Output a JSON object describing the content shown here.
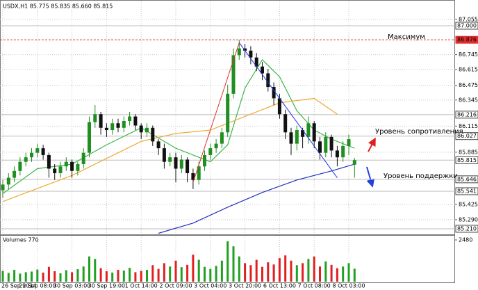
{
  "chart_data": {
    "type": "candlestick",
    "title": "USDX,H1 85.775 85.835 85.660 85.815",
    "categories": [
      "26 Sep 2014",
      null,
      null,
      null,
      null,
      null,
      "29 Sep 08:00",
      null,
      null,
      null,
      null,
      null,
      "30 Sep 03:00",
      null,
      null,
      null,
      null,
      null,
      "30 Sep 19:00",
      null,
      null,
      null,
      null,
      null,
      "1 Oct 14:00",
      null,
      null,
      null,
      null,
      null,
      "2 Oct 09:00",
      null,
      null,
      null,
      null,
      null,
      "3 Oct 04:00",
      null,
      null,
      null,
      null,
      null,
      "3 Oct 20:00",
      null,
      null,
      null,
      null,
      null,
      "6 Oct 13:00",
      null,
      null,
      null,
      null,
      null,
      "7 Oct 08:00",
      null,
      null,
      null,
      null,
      null,
      "8 Oct 03:00",
      null
    ],
    "open": [
      85.55,
      85.6,
      85.66,
      85.72,
      85.8,
      85.84,
      85.88,
      85.92,
      85.86,
      85.74,
      85.7,
      85.76,
      85.8,
      85.72,
      85.78,
      85.88,
      86.15,
      86.22,
      86.1,
      86.08,
      86.14,
      86.1,
      86.16,
      86.2,
      86.12,
      86.06,
      86.1,
      85.98,
      85.92,
      85.8,
      85.84,
      85.74,
      85.82,
      85.7,
      85.64,
      85.76,
      85.86,
      85.92,
      85.96,
      86.06,
      86.4,
      86.74,
      86.8,
      86.78,
      86.72,
      86.64,
      86.58,
      86.46,
      86.36,
      86.22,
      86.06,
      85.96,
      86.08,
      86.02,
      86.14,
      85.98,
      85.88,
      86.02,
      85.9,
      85.84,
      85.94,
      85.775
    ],
    "high": [
      85.64,
      85.7,
      85.76,
      85.84,
      85.88,
      85.92,
      85.96,
      85.95,
      85.88,
      85.78,
      85.8,
      85.84,
      85.82,
      85.8,
      85.92,
      86.2,
      86.3,
      86.24,
      86.14,
      86.18,
      86.18,
      86.2,
      86.24,
      86.22,
      86.14,
      86.14,
      86.12,
      86.0,
      85.96,
      85.88,
      85.88,
      85.86,
      85.84,
      85.74,
      85.8,
      85.9,
      85.96,
      86.0,
      86.1,
      86.48,
      86.8,
      86.876,
      86.84,
      86.82,
      86.76,
      86.68,
      86.62,
      86.5,
      86.4,
      86.26,
      86.1,
      86.12,
      86.1,
      86.2,
      86.16,
      86.02,
      86.06,
      86.04,
      85.94,
      85.98,
      86.04,
      85.835
    ],
    "low": [
      85.48,
      85.56,
      85.62,
      85.68,
      85.76,
      85.8,
      85.84,
      85.82,
      85.66,
      85.64,
      85.66,
      85.72,
      85.66,
      85.68,
      85.74,
      85.84,
      86.1,
      86.04,
      86.02,
      86.04,
      86.06,
      86.06,
      86.12,
      86.08,
      86.0,
      86.02,
      85.94,
      85.86,
      85.74,
      85.76,
      85.62,
      85.7,
      85.62,
      85.56,
      85.6,
      85.72,
      85.82,
      85.88,
      85.92,
      86.02,
      86.36,
      86.7,
      86.72,
      86.66,
      86.6,
      86.52,
      86.42,
      86.3,
      86.18,
      86.0,
      85.86,
      85.9,
      85.92,
      85.96,
      85.92,
      85.82,
      85.84,
      85.84,
      85.76,
      85.8,
      85.86,
      85.66
    ],
    "close": [
      85.6,
      85.66,
      85.72,
      85.8,
      85.84,
      85.88,
      85.92,
      85.86,
      85.74,
      85.7,
      85.76,
      85.8,
      85.72,
      85.78,
      85.88,
      86.15,
      86.22,
      86.1,
      86.08,
      86.14,
      86.1,
      86.16,
      86.2,
      86.12,
      86.06,
      86.1,
      85.98,
      85.92,
      85.8,
      85.84,
      85.74,
      85.82,
      85.7,
      85.64,
      85.76,
      85.86,
      85.92,
      85.96,
      86.06,
      86.4,
      86.74,
      86.8,
      86.78,
      86.72,
      86.64,
      86.58,
      86.46,
      86.36,
      86.22,
      86.06,
      85.96,
      86.08,
      86.02,
      86.14,
      85.98,
      85.88,
      86.02,
      85.9,
      85.84,
      85.94,
      86.0,
      85.815
    ],
    "up_color": "#1f8f1f",
    "down_color": "#111111",
    "ylim": [
      85.173,
      87.196
    ],
    "yticks": [
      {
        "value": 87.055,
        "label": "87.055"
      },
      86.745,
      86.615,
      86.475,
      86.345,
      86.115,
      85.885,
      85.425,
      {
        "value": 85.29,
        "label": "85.290"
      }
    ],
    "levels": [
      {
        "value": 87,
        "label": "87.000",
        "color": "#bbbbbb"
      },
      {
        "value": 86.876,
        "color": "#e03030",
        "dashed": true
      },
      {
        "value": 86.216,
        "color": "#bbbbbb"
      },
      {
        "value": 86.027,
        "color": "#bbbbbb"
      },
      {
        "value": 85.815,
        "color": "#bbbbbb"
      },
      {
        "value": 85.646,
        "color": "#bbbbbb"
      },
      {
        "value": 85.541,
        "color": "#bbbbbb"
      },
      {
        "value": 85.21,
        "label": "85.210",
        "color": "#bbbbbb"
      }
    ],
    "moving_averages": [
      {
        "color": "#3cb44b",
        "x": [
          0,
          6,
          12,
          18,
          24,
          30,
          36,
          39,
          42,
          45,
          48,
          51,
          54,
          57,
          61
        ],
        "values": [
          85.52,
          85.74,
          85.78,
          85.95,
          86.1,
          85.92,
          85.8,
          85.95,
          86.45,
          86.7,
          86.55,
          86.25,
          86.08,
          86.0,
          85.92
        ]
      },
      {
        "color": "#f0a830",
        "x": [
          0,
          12,
          24,
          30,
          36,
          42,
          48,
          54,
          58
        ],
        "values": [
          85.45,
          85.68,
          85.98,
          86.05,
          86.08,
          86.2,
          86.32,
          86.36,
          86.22
        ]
      },
      {
        "color": "#2030c0",
        "x": [
          27,
          33,
          39,
          45,
          51,
          57,
          61
        ],
        "values": [
          85.17,
          85.26,
          85.4,
          85.53,
          85.64,
          85.72,
          85.78
        ]
      }
    ],
    "trendlines": [
      {
        "color": "#e03030",
        "from": [
          33,
          85.62
        ],
        "to": [
          41,
          86.85
        ]
      },
      {
        "color": "#2030e0",
        "from": [
          41,
          86.85
        ],
        "to": [
          58,
          85.66
        ]
      }
    ],
    "annotations": [
      "Максимум",
      "Уровень сопротивления",
      "Уровень поддержки"
    ],
    "grid": true,
    "volume_label": "Volumes 770",
    "volumes": [
      640,
      520,
      700,
      480,
      560,
      600,
      720,
      540,
      880,
      620,
      500,
      680,
      560,
      740,
      900,
      1500,
      1350,
      800,
      620,
      540,
      700,
      660,
      820,
      560,
      640,
      700,
      980,
      760,
      1100,
      900,
      1250,
      860,
      1000,
      1600,
      1300,
      880,
      760,
      940,
      1250,
      2400,
      2100,
      1500,
      1100,
      980,
      1300,
      880,
      1150,
      1020,
      1400,
      1560,
      1250,
      980,
      1100,
      1350,
      1500,
      900,
      1200,
      1000,
      800,
      900,
      1100,
      770
    ],
    "volume_ylim": [
      0,
      2480
    ],
    "volume_ticks": [
      2480
    ]
  }
}
